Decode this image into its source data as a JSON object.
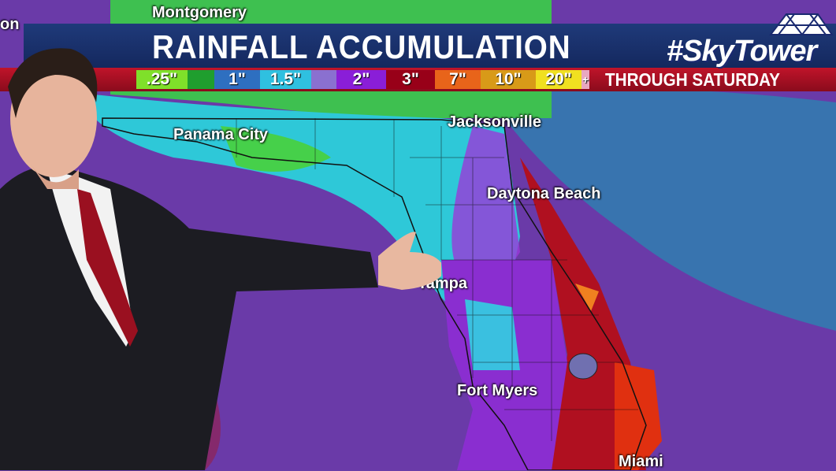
{
  "header": {
    "title": "RAINFALL ACCUMULATION",
    "subtitle": "THROUGH SATURDAY",
    "brand": "#SkyTower"
  },
  "legend": [
    {
      "label": ".25\"",
      "color": "#7fe02a"
    },
    {
      "label": "",
      "color": "#1f9e2e"
    },
    {
      "label": "1\"",
      "color": "#2e6fc0"
    },
    {
      "label": "1.5\"",
      "color": "#2fc0e0"
    },
    {
      "label": "",
      "color": "#8a70d0"
    },
    {
      "label": "2\"",
      "color": "#8a1ed8"
    },
    {
      "label": "3\"",
      "color": "#980018"
    },
    {
      "label": "7\"",
      "color": "#e8641a"
    },
    {
      "label": "10\"",
      "color": "#d89a18"
    },
    {
      "label": "20\"",
      "color": "#f0e020"
    },
    {
      "label": "+",
      "color": "#e8a8c0"
    }
  ],
  "cities": [
    {
      "name": "Montgomery"
    },
    {
      "name": "Panama City"
    },
    {
      "name": "Jacksonville"
    },
    {
      "name": "Daytona Beach"
    },
    {
      "name": "Tampa"
    },
    {
      "name": "Fort Myers"
    },
    {
      "name": "Miami"
    },
    {
      "name": "on"
    }
  ]
}
